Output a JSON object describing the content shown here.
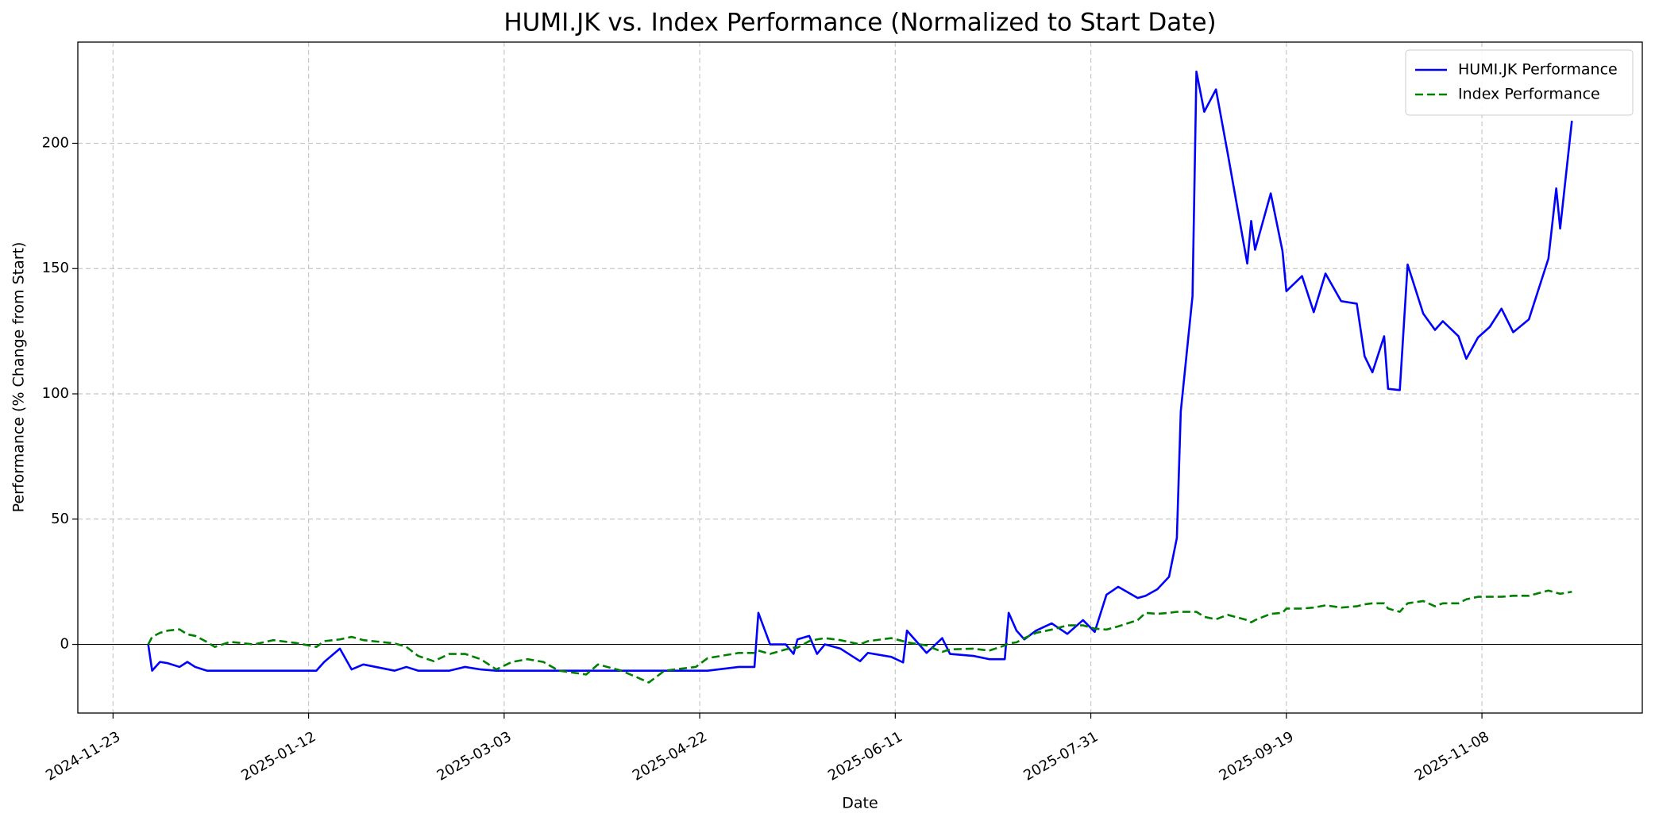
{
  "chart_data": {
    "type": "line",
    "title": "HUMI.JK vs. Index Performance (Normalized to Start Date)",
    "xlabel": "Date",
    "ylabel": "Performance (% Change from Start)",
    "x": [
      "2024-12-02",
      "2024-12-03",
      "2024-12-05",
      "2024-12-07",
      "2024-12-10",
      "2024-12-12",
      "2024-12-14",
      "2024-12-17",
      "2024-12-19",
      "2024-12-23",
      "2024-12-29",
      "2025-01-03",
      "2025-01-09",
      "2025-01-14",
      "2025-01-16",
      "2025-01-20",
      "2025-01-23",
      "2025-01-26",
      "2025-02-03",
      "2025-02-06",
      "2025-02-09",
      "2025-02-13",
      "2025-02-17",
      "2025-02-21",
      "2025-02-25",
      "2025-03-01",
      "2025-03-05",
      "2025-03-09",
      "2025-03-13",
      "2025-03-17",
      "2025-03-24",
      "2025-03-27",
      "2025-04-02",
      "2025-04-09",
      "2025-04-13",
      "2025-04-21",
      "2025-04-24",
      "2025-05-02",
      "2025-05-06",
      "2025-05-07",
      "2025-05-10",
      "2025-05-14",
      "2025-05-16",
      "2025-05-17",
      "2025-05-20",
      "2025-05-22",
      "2025-05-24",
      "2025-05-28",
      "2025-06-02",
      "2025-06-04",
      "2025-06-10",
      "2025-06-13",
      "2025-06-14",
      "2025-06-19",
      "2025-06-23",
      "2025-06-25",
      "2025-07-01",
      "2025-07-05",
      "2025-07-09",
      "2025-07-10",
      "2025-07-12",
      "2025-07-14",
      "2025-07-17",
      "2025-07-21",
      "2025-07-25",
      "2025-07-29",
      "2025-08-01",
      "2025-08-04",
      "2025-08-07",
      "2025-08-12",
      "2025-08-14",
      "2025-08-17",
      "2025-08-20",
      "2025-08-22",
      "2025-08-23",
      "2025-08-26",
      "2025-08-27",
      "2025-08-29",
      "2025-09-01",
      "2025-09-04",
      "2025-09-09",
      "2025-09-10",
      "2025-09-11",
      "2025-09-15",
      "2025-09-18",
      "2025-09-19",
      "2025-09-23",
      "2025-09-26",
      "2025-09-29",
      "2025-10-03",
      "2025-10-07",
      "2025-10-09",
      "2025-10-11",
      "2025-10-14",
      "2025-10-15",
      "2025-10-18",
      "2025-10-20",
      "2025-10-24",
      "2025-10-27",
      "2025-10-29",
      "2025-11-02",
      "2025-11-04",
      "2025-11-07",
      "2025-11-10",
      "2025-11-13",
      "2025-11-16",
      "2025-11-20",
      "2025-11-25",
      "2025-11-27",
      "2025-11-28",
      "2025-12-01"
    ],
    "series": [
      {
        "name": "HUMI.JK Performance",
        "color": "#0000ff",
        "linestyle": "solid",
        "values": [
          0,
          -10.5,
          -7,
          -7.5,
          -9,
          -7,
          -9,
          -10.5,
          -10.5,
          -10.5,
          -10.5,
          -10.5,
          -10.5,
          -10.5,
          -7,
          -1.7,
          -10,
          -8,
          -10.5,
          -9,
          -10.5,
          -10.5,
          -10.5,
          -9,
          -10,
          -10.5,
          -10.5,
          -10.5,
          -10.5,
          -10.5,
          -10.5,
          -10.5,
          -10.5,
          -10.5,
          -10.5,
          -10.5,
          -10.5,
          -9,
          -9,
          12.6,
          0,
          0,
          -3.8,
          2,
          3.4,
          -3.8,
          0,
          -1.7,
          -6.7,
          -3.4,
          -5,
          -7.2,
          5.5,
          -3.4,
          2.5,
          -3.8,
          -4.6,
          -5.9,
          -5.9,
          12.6,
          5.5,
          2,
          5.5,
          8.4,
          4.2,
          9.7,
          5,
          19.8,
          23,
          18.5,
          19.4,
          22,
          27,
          42.5,
          93,
          139,
          228.6,
          212.6,
          221.5,
          196,
          152,
          169,
          157.5,
          180,
          157,
          141,
          147,
          132.6,
          148,
          137,
          136,
          115,
          108.6,
          123,
          102,
          101.5,
          151.6,
          132,
          125.5,
          129,
          123,
          114,
          122.5,
          126.7,
          134,
          124.6,
          129.7,
          154,
          182,
          166,
          209
        ]
      },
      {
        "name": "Index Performance",
        "color": "#008000",
        "linestyle": "dashed",
        "values": [
          0,
          3,
          4.6,
          5.5,
          6,
          4,
          3.4,
          1,
          -1,
          1,
          0,
          1.7,
          0.5,
          -1,
          1.3,
          2,
          3,
          1.7,
          0.4,
          -1,
          -4.6,
          -6.7,
          -3.8,
          -3.8,
          -5.9,
          -10,
          -7,
          -5.9,
          -7,
          -10.5,
          -12,
          -8,
          -10.5,
          -15.2,
          -10.5,
          -9,
          -5.5,
          -3.4,
          -3.4,
          -2.5,
          -3.8,
          -2,
          -1.3,
          -1.3,
          1.3,
          2,
          2.5,
          1.7,
          0,
          1.3,
          2.5,
          1.3,
          0.8,
          -0.4,
          -3,
          -2,
          -1.7,
          -2.5,
          -0.4,
          0.4,
          0.8,
          2.5,
          4.6,
          5.9,
          7.6,
          7.6,
          6.3,
          5.9,
          7.2,
          9.7,
          12.6,
          12.2,
          12.6,
          13,
          13,
          13,
          13,
          11,
          10,
          11.8,
          9.7,
          8.8,
          9.7,
          12.2,
          12.6,
          14.3,
          14.3,
          14.7,
          15.6,
          14.7,
          15.2,
          16,
          16.4,
          16.4,
          14.3,
          13,
          16.4,
          17.3,
          15.2,
          16.4,
          16.4,
          18,
          19,
          19,
          19,
          19.4,
          19.4,
          21.5,
          20.6,
          20.2,
          21
        ]
      }
    ],
    "xlim": [
      "2024-11-14",
      "2025-12-19"
    ],
    "xticks": [
      "2024-11-23",
      "2025-01-12",
      "2025-03-03",
      "2025-04-22",
      "2025-06-11",
      "2025-07-31",
      "2025-09-19",
      "2025-11-08"
    ],
    "ylim": [
      -27.4,
      240.4
    ],
    "yticks": [
      0,
      50,
      100,
      150,
      200
    ],
    "grid": true,
    "legend": "upper right"
  }
}
